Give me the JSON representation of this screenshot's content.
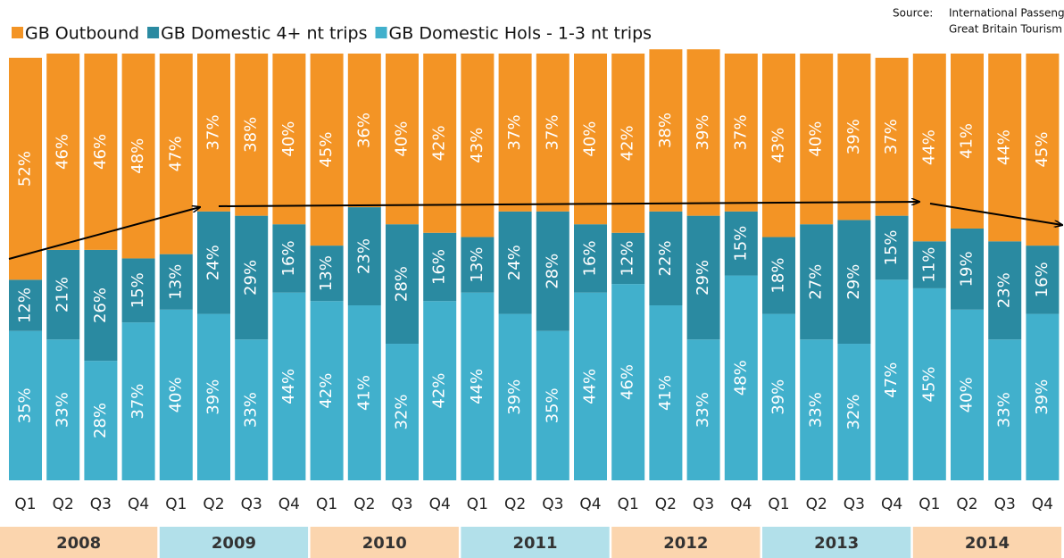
{
  "chart_data": {
    "type": "stacked_bar",
    "source_label": "Source:",
    "source_lines": [
      "International Passenger Survey",
      "Great Britain Tourism Survey"
    ],
    "categories": [
      "Q1",
      "Q2",
      "Q3",
      "Q4",
      "Q1",
      "Q2",
      "Q3",
      "Q4",
      "Q1",
      "Q2",
      "Q3",
      "Q4",
      "Q1",
      "Q2",
      "Q3",
      "Q4",
      "Q1",
      "Q2",
      "Q3",
      "Q4",
      "Q1",
      "Q2",
      "Q3",
      "Q4",
      "Q1",
      "Q2",
      "Q3",
      "Q4"
    ],
    "years": [
      "2008",
      "2009",
      "2010",
      "2011",
      "2012",
      "2013",
      "2014"
    ],
    "ylim": [
      0,
      100
    ],
    "series": [
      {
        "name": "GB Outbound",
        "color": "#f39425",
        "values": [
          52,
          46,
          46,
          48,
          47,
          37,
          38,
          40,
          45,
          36,
          40,
          42,
          43,
          37,
          37,
          40,
          42,
          38,
          39,
          37,
          43,
          40,
          39,
          37,
          44,
          41,
          44,
          45
        ],
        "value_labels": [
          "52%",
          "46%",
          "46%",
          "48%",
          "47%",
          "37%",
          "38%",
          "40%",
          "45%",
          "36%",
          "40%",
          "42%",
          "43%",
          "37%",
          "37%",
          "40%",
          "42%",
          "38%",
          "39%",
          "37%",
          "43%",
          "40%",
          "39%",
          "37%",
          "44%",
          "41%",
          "44%",
          "45%"
        ]
      },
      {
        "name": "GB Domestic 4+ nt trips",
        "color": "#2a8aa1",
        "values": [
          12,
          21,
          26,
          15,
          13,
          24,
          29,
          16,
          13,
          23,
          28,
          16,
          13,
          24,
          28,
          16,
          12,
          22,
          29,
          15,
          18,
          27,
          29,
          15,
          11,
          19,
          23,
          16
        ],
        "value_labels": [
          "12%",
          "21%",
          "26%",
          "15%",
          "13%",
          "24%",
          "29%",
          "16%",
          "13%",
          "23%",
          "28%",
          "16%",
          "13%",
          "24%",
          "28%",
          "16%",
          "12%",
          "22%",
          "29%",
          "15%",
          "18%",
          "27%",
          "29%",
          "15%",
          "11%",
          "19%",
          "23%",
          "16%"
        ]
      },
      {
        "name": "GB Domestic Hols - 1-3 nt trips",
        "color": "#41b0cc",
        "values": [
          35,
          33,
          28,
          37,
          40,
          39,
          33,
          44,
          42,
          41,
          32,
          42,
          44,
          39,
          35,
          44,
          46,
          41,
          33,
          48,
          39,
          33,
          32,
          47,
          45,
          40,
          33,
          39
        ],
        "value_labels": [
          "35%",
          "33%",
          "28%",
          "37%",
          "40%",
          "39%",
          "33%",
          "44%",
          "42%",
          "41%",
          "32%",
          "42%",
          "44%",
          "39%",
          "35%",
          "44%",
          "46%",
          "41%",
          "33%",
          "48%",
          "39%",
          "33%",
          "32%",
          "47%",
          "45%",
          "40%",
          "33%",
          "39%"
        ]
      }
    ]
  }
}
